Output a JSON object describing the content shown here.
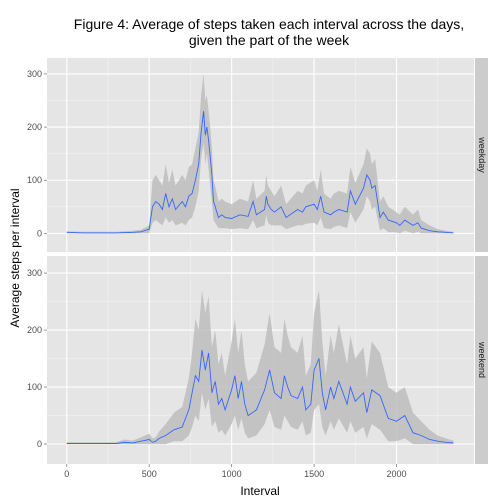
{
  "chart_data": {
    "type": "line",
    "title_lines": [
      "Figure 4: Average of steps taken each interval across the days,",
      "given the part of the week"
    ],
    "xlabel": "Interval",
    "ylabel": "Average steps per interval",
    "xlim": [
      -120,
      2470
    ],
    "ylim": [
      -35,
      330
    ],
    "x_ticks": [
      0,
      500,
      1000,
      1500,
      2000
    ],
    "y_ticks": [
      0,
      100,
      200,
      300
    ],
    "grid": true,
    "band_description": "grey ribbon (shaded)",
    "colors": {
      "line": "#3366ff",
      "band": "#bdbdbd",
      "panel": "#e5e5e5",
      "strip": "#cccccc",
      "grid_major": "#ffffff"
    },
    "panels": [
      {
        "facet_label": "weekday",
        "x": [
          0,
          100,
          200,
          300,
          400,
          450,
          500,
          520,
          540,
          560,
          580,
          600,
          620,
          640,
          660,
          700,
          720,
          740,
          760,
          780,
          800,
          815,
          830,
          840,
          850,
          860,
          870,
          880,
          890,
          900,
          910,
          920,
          940,
          960,
          1000,
          1050,
          1100,
          1130,
          1150,
          1200,
          1210,
          1220,
          1240,
          1260,
          1300,
          1330,
          1400,
          1430,
          1450,
          1500,
          1520,
          1540,
          1560,
          1600,
          1620,
          1650,
          1700,
          1720,
          1750,
          1800,
          1820,
          1840,
          1850,
          1870,
          1900,
          1920,
          1950,
          2000,
          2020,
          2050,
          2100,
          2130,
          2150,
          2200,
          2250,
          2300,
          2345
        ],
        "y": [
          2,
          1,
          1,
          1,
          2,
          3,
          8,
          50,
          60,
          55,
          45,
          75,
          50,
          65,
          45,
          60,
          50,
          70,
          75,
          100,
          130,
          190,
          230,
          185,
          200,
          175,
          145,
          110,
          60,
          50,
          40,
          30,
          35,
          30,
          28,
          35,
          32,
          60,
          35,
          45,
          70,
          55,
          45,
          40,
          50,
          30,
          45,
          40,
          50,
          55,
          45,
          70,
          40,
          35,
          40,
          45,
          40,
          80,
          55,
          85,
          110,
          100,
          85,
          90,
          30,
          40,
          25,
          20,
          15,
          25,
          15,
          20,
          10,
          5,
          3,
          2,
          1
        ],
        "low": [
          0,
          0,
          0,
          0,
          0,
          0,
          0,
          20,
          25,
          20,
          15,
          30,
          20,
          25,
          15,
          20,
          15,
          25,
          30,
          50,
          80,
          140,
          170,
          130,
          150,
          120,
          90,
          60,
          25,
          20,
          15,
          10,
          10,
          10,
          8,
          10,
          8,
          25,
          10,
          15,
          35,
          20,
          15,
          15,
          15,
          8,
          15,
          15,
          18,
          20,
          15,
          30,
          10,
          8,
          12,
          15,
          10,
          40,
          20,
          45,
          70,
          60,
          45,
          50,
          5,
          10,
          2,
          2,
          0,
          5,
          0,
          3,
          0,
          0,
          0,
          0,
          0
        ],
        "high": [
          4,
          3,
          3,
          3,
          5,
          7,
          15,
          100,
          110,
          100,
          90,
          130,
          95,
          120,
          90,
          110,
          100,
          125,
          130,
          160,
          190,
          260,
          300,
          250,
          260,
          230,
          200,
          160,
          100,
          90,
          75,
          60,
          65,
          60,
          55,
          65,
          60,
          100,
          65,
          80,
          110,
          90,
          80,
          70,
          90,
          55,
          80,
          75,
          90,
          100,
          80,
          120,
          75,
          65,
          75,
          80,
          75,
          125,
          95,
          130,
          160,
          150,
          130,
          140,
          60,
          70,
          50,
          40,
          35,
          50,
          35,
          45,
          25,
          15,
          8,
          5,
          3
        ]
      },
      {
        "facet_label": "weekend",
        "x": [
          0,
          100,
          200,
          300,
          350,
          400,
          450,
          500,
          520,
          540,
          560,
          600,
          650,
          700,
          720,
          740,
          760,
          780,
          800,
          820,
          840,
          860,
          880,
          900,
          920,
          940,
          960,
          1000,
          1020,
          1040,
          1060,
          1080,
          1100,
          1150,
          1200,
          1230,
          1260,
          1300,
          1320,
          1340,
          1360,
          1400,
          1430,
          1450,
          1480,
          1500,
          1530,
          1550,
          1570,
          1600,
          1620,
          1650,
          1700,
          1720,
          1750,
          1800,
          1820,
          1850,
          1900,
          1950,
          2000,
          2050,
          2100,
          2150,
          2200,
          2250,
          2300,
          2345
        ],
        "y": [
          1,
          1,
          1,
          1,
          3,
          2,
          5,
          8,
          3,
          5,
          10,
          15,
          25,
          30,
          45,
          60,
          90,
          120,
          110,
          165,
          130,
          160,
          90,
          110,
          70,
          80,
          60,
          95,
          120,
          80,
          110,
          70,
          50,
          60,
          95,
          130,
          90,
          80,
          120,
          100,
          85,
          80,
          100,
          60,
          70,
          130,
          150,
          90,
          60,
          100,
          80,
          110,
          70,
          100,
          75,
          90,
          55,
          95,
          85,
          45,
          40,
          50,
          20,
          15,
          8,
          5,
          3,
          2
        ],
        "low": [
          0,
          0,
          0,
          0,
          0,
          0,
          0,
          0,
          0,
          0,
          0,
          0,
          5,
          5,
          10,
          15,
          30,
          50,
          40,
          90,
          60,
          80,
          30,
          40,
          20,
          25,
          15,
          35,
          50,
          25,
          45,
          20,
          10,
          15,
          35,
          60,
          30,
          25,
          50,
          40,
          30,
          25,
          40,
          15,
          20,
          60,
          70,
          30,
          15,
          40,
          25,
          45,
          20,
          40,
          20,
          30,
          10,
          35,
          25,
          5,
          5,
          10,
          0,
          0,
          0,
          0,
          0,
          0
        ],
        "high": [
          3,
          3,
          3,
          3,
          8,
          6,
          12,
          18,
          10,
          12,
          22,
          35,
          55,
          65,
          90,
          115,
          160,
          220,
          200,
          270,
          230,
          260,
          170,
          200,
          140,
          160,
          120,
          180,
          220,
          160,
          200,
          140,
          110,
          125,
          175,
          230,
          170,
          160,
          220,
          190,
          170,
          160,
          190,
          120,
          140,
          230,
          270,
          180,
          120,
          190,
          160,
          210,
          140,
          190,
          150,
          170,
          115,
          180,
          160,
          100,
          90,
          100,
          55,
          40,
          25,
          15,
          10,
          6
        ]
      }
    ]
  }
}
